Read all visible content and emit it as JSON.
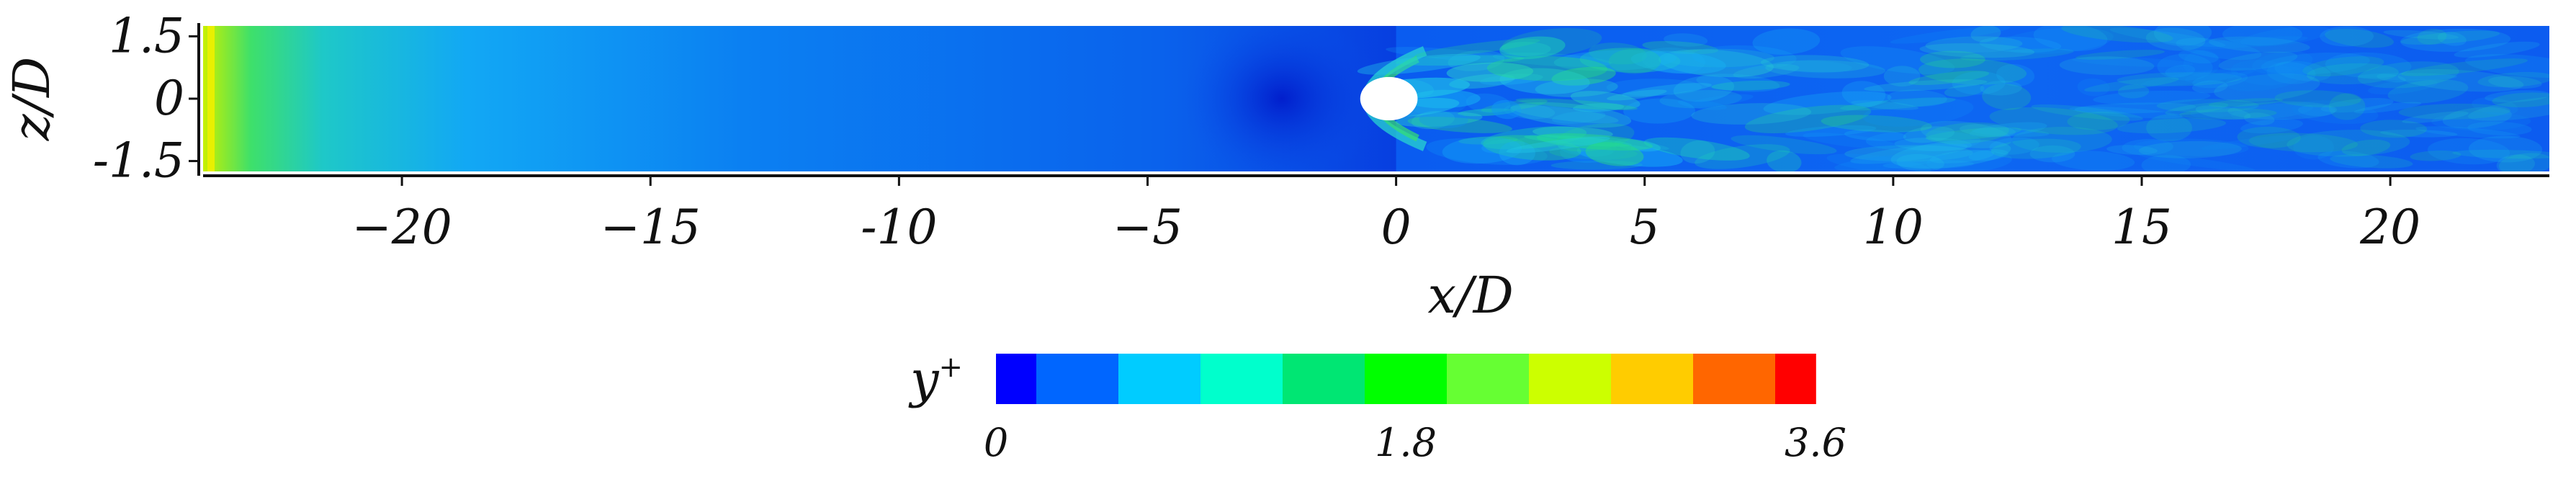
{
  "chart_data": {
    "type": "heatmap",
    "field": "wall y+ contour",
    "x_axis": {
      "label": "x/D",
      "range": [
        -24,
        23.2
      ],
      "ticks": [
        -20,
        -15,
        -10,
        -5,
        0,
        5,
        10,
        15,
        20
      ],
      "tick_labels": [
        "−20",
        "−15",
        "-10",
        "−5",
        "0",
        "5",
        "10",
        "15",
        "20"
      ]
    },
    "z_axis": {
      "label": "z/D",
      "range": [
        -1.75,
        1.75
      ],
      "ticks": [
        1.5,
        0,
        -1.5
      ],
      "tick_labels": [
        "1.5",
        "0",
        "-1.5"
      ]
    },
    "obstacle": {
      "shape": "circle",
      "center_x": 0,
      "center_z": 0,
      "diameter": 1,
      "fill": "#ffffff"
    },
    "colorbar": {
      "label_var": "y",
      "label_sup": "+",
      "min": 0,
      "max": 3.6,
      "tick_labels": [
        "0",
        "1.8",
        "3.6"
      ],
      "tick_values": [
        0,
        1.8,
        3.6
      ],
      "colors": [
        "#0000ff",
        "#0066ff",
        "#00ccff",
        "#00ffcc",
        "#00e673",
        "#00ff00",
        "#66ff33",
        "#ccff00",
        "#ffcc00",
        "#ff6600",
        "#ff0000"
      ]
    },
    "dominant_color": "#0a5cf0",
    "inlet_band_colors": [
      "#e8f000",
      "#40e060",
      "#20d8a8",
      "#1ab8f0"
    ]
  }
}
